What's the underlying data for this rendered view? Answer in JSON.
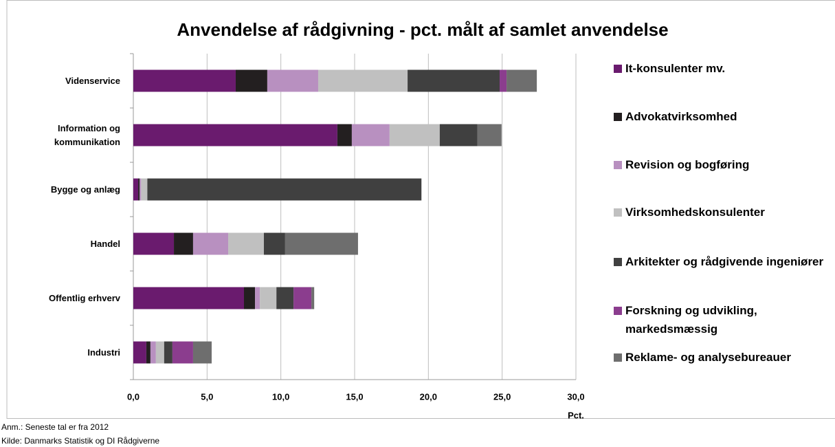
{
  "chart_data": {
    "type": "stacked_barh",
    "title": "Anvendelse af rådgivning - pct. målt af samlet anvendelse",
    "xlabel": "Pct.",
    "categories": [
      "Videnservice",
      "Information og kommunikation",
      "Bygge og anlæg",
      "Handel",
      "Offentlig erhverv",
      "Industri"
    ],
    "series": [
      {
        "name": "It-konsulenter mv.",
        "color": "#6a1b6e",
        "values": [
          6.94,
          13.83,
          0.33,
          2.75,
          7.5,
          0.88
        ]
      },
      {
        "name": "Advokatvirksomhed",
        "color": "#231f20",
        "values": [
          2.14,
          0.98,
          0.1,
          1.3,
          0.75,
          0.28
        ]
      },
      {
        "name": "Revision og bogføring",
        "color": "#b890c0",
        "values": [
          3.45,
          2.56,
          0.1,
          2.38,
          0.33,
          0.37
        ]
      },
      {
        "name": "Virksomhedskonsulenter",
        "color": "#c0c0c0",
        "values": [
          6.06,
          3.4,
          0.42,
          2.42,
          1.12,
          0.56
        ]
      },
      {
        "name": "Arkitekter og rådgivende ingeniører",
        "color": "#404040",
        "values": [
          6.24,
          2.56,
          18.58,
          1.44,
          1.16,
          0.56
        ]
      },
      {
        "name": "Forskning og udvikling, markedsmæssig",
        "color": "#8b3d8e",
        "values": [
          0.47,
          0,
          0,
          0,
          1.21,
          1.4
        ]
      },
      {
        "name": "Reklame- og analysebureauer",
        "color": "#6e6e6e",
        "values": [
          2.05,
          1.63,
          0,
          4.94,
          0.19,
          1.26
        ]
      }
    ],
    "xlim": [
      0,
      30
    ],
    "xticks": [
      {
        "value": 0,
        "label": "0,0"
      },
      {
        "value": 5,
        "label": "5,0"
      },
      {
        "value": 10,
        "label": "10,0"
      },
      {
        "value": 15,
        "label": "15,0"
      },
      {
        "value": 20,
        "label": "20,0"
      },
      {
        "value": 25,
        "label": "25,0"
      },
      {
        "value": 30,
        "label": "30,0"
      }
    ],
    "grid": true,
    "legend": "right",
    "notes": [
      "Anm.: Seneste tal er fra 2012",
      "Kilde: Danmarks Statistik og DI Rådgiverne"
    ]
  }
}
